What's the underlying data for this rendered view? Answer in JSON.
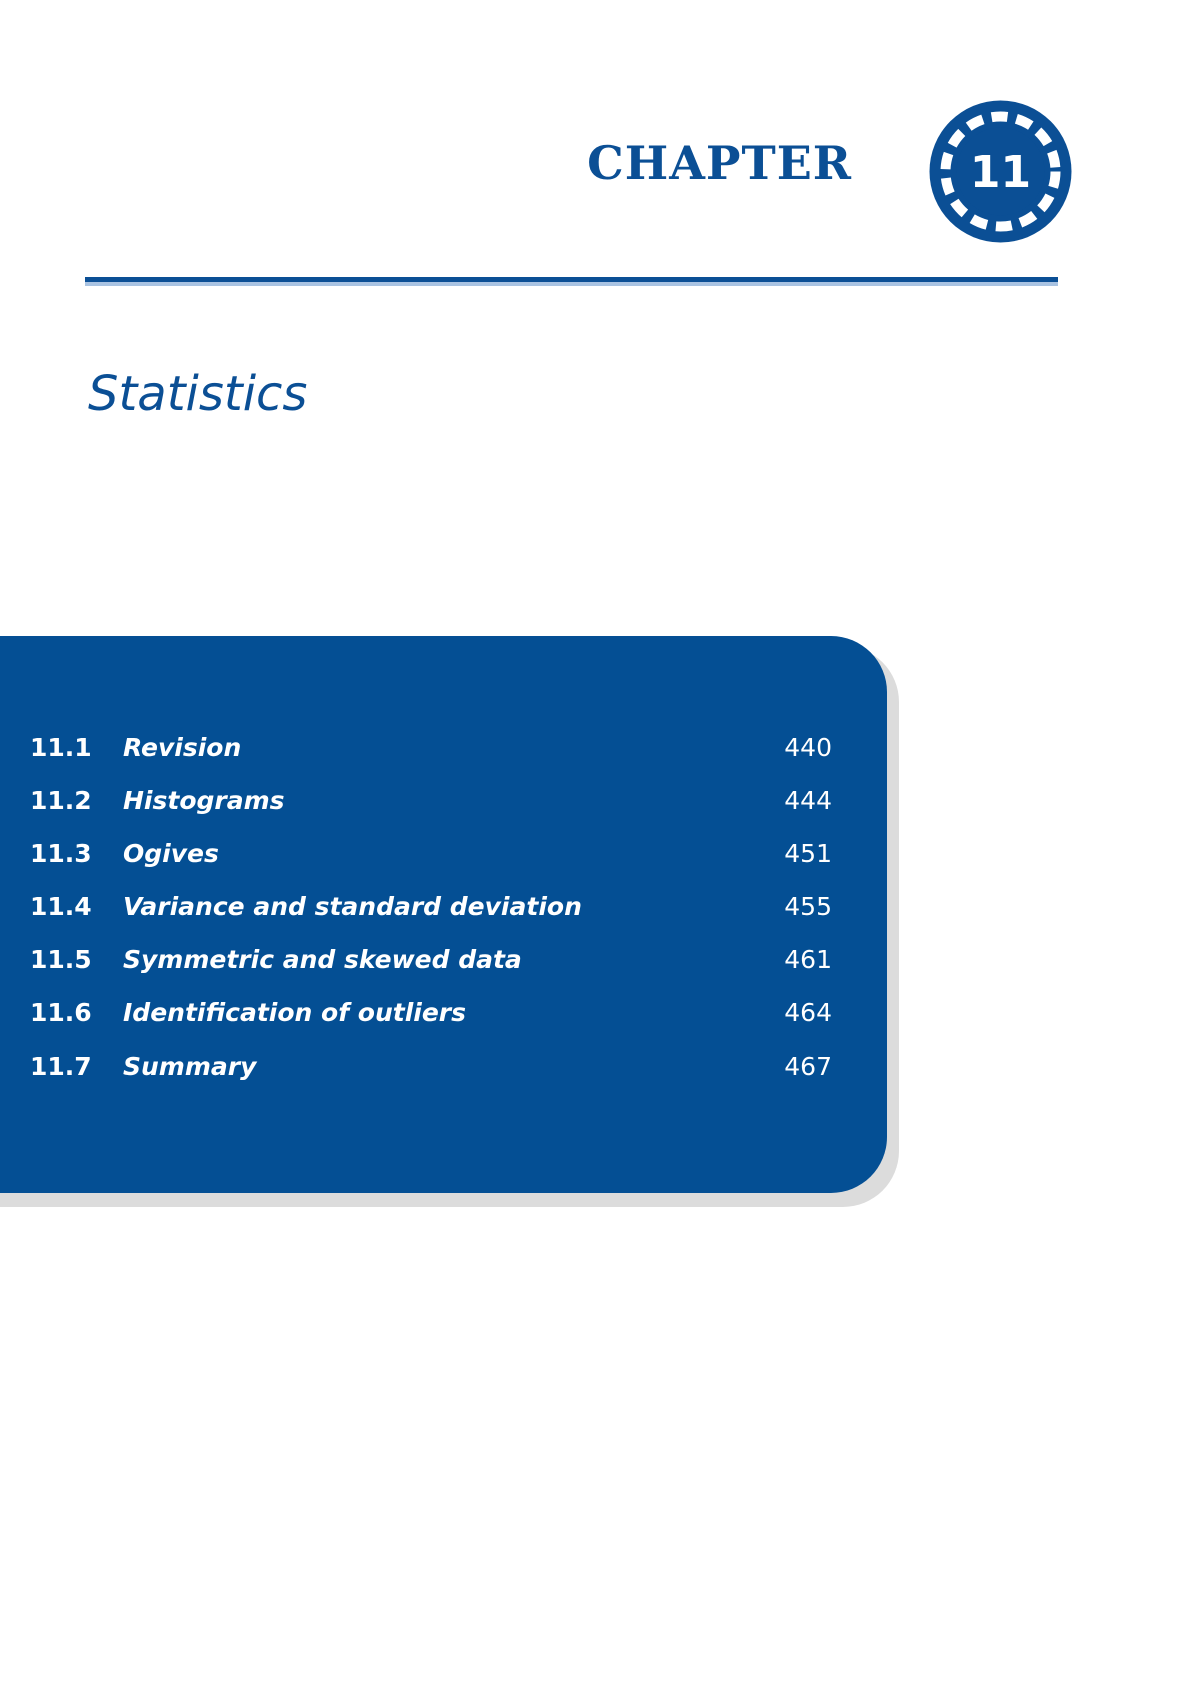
{
  "header": {
    "chapter_word": "CHAPTER",
    "chapter_number": "11",
    "chapter_title": "Statistics"
  },
  "colors": {
    "accent": "#0b4f95",
    "panel": "#044f94",
    "rule_light": "#a9c3e2",
    "shadow": "#dcdcdc"
  },
  "toc": {
    "items": [
      {
        "num": "11.1",
        "title": "Revision",
        "page": "440"
      },
      {
        "num": "11.2",
        "title": "Histograms",
        "page": "444"
      },
      {
        "num": "11.3",
        "title": "Ogives",
        "page": "451"
      },
      {
        "num": "11.4",
        "title": "Variance and standard deviation",
        "page": "455"
      },
      {
        "num": "11.5",
        "title": "Symmetric and skewed data",
        "page": "461"
      },
      {
        "num": "11.6",
        "title": "Identification of outliers",
        "page": "464"
      },
      {
        "num": "11.7",
        "title": "Summary",
        "page": "467"
      }
    ]
  }
}
